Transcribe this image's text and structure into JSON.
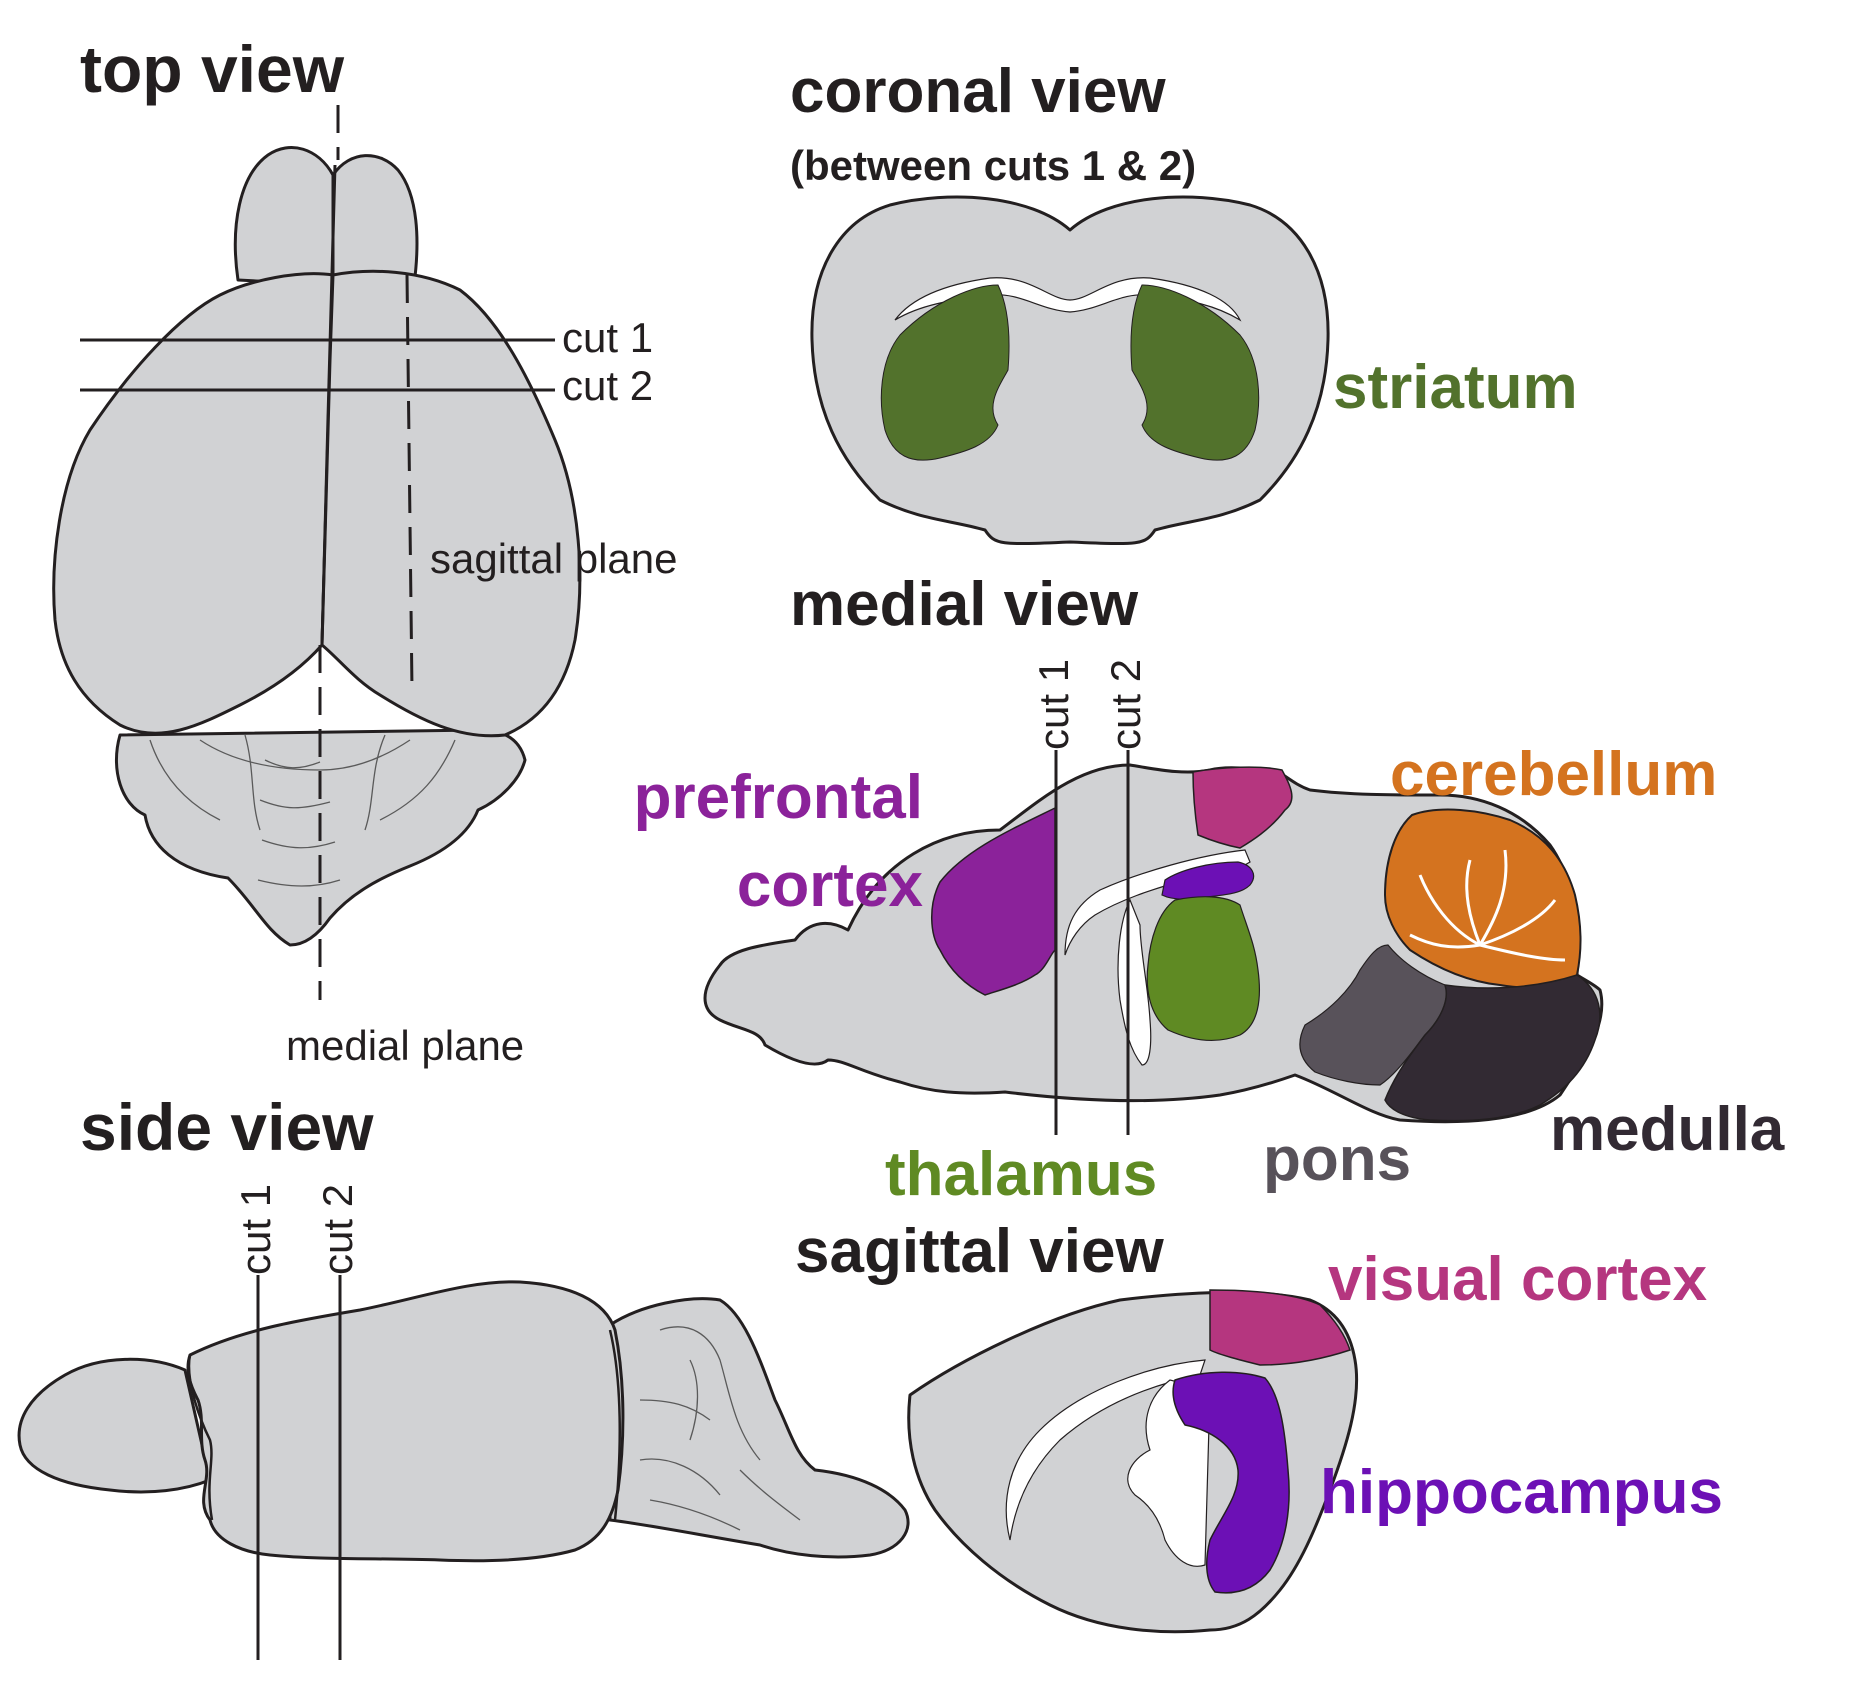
{
  "titles": {
    "top_view": "top view",
    "coronal_view": "coronal view",
    "coronal_sub": "(between cuts 1 & 2)",
    "medial_view": "medial view",
    "side_view": "side view",
    "sagittal_view": "sagittal view"
  },
  "labels": {
    "cut1": "cut 1",
    "cut2": "cut 2",
    "sagittal_plane": "sagittal plane",
    "medial_plane": "medial plane"
  },
  "regions": {
    "striatum": "striatum",
    "prefrontal_line1": "prefrontal",
    "prefrontal_line2": "cortex",
    "cerebellum": "cerebellum",
    "thalamus": "thalamus",
    "pons": "pons",
    "medulla": "medulla",
    "visual_cortex": "visual cortex",
    "hippocampus": "hippocampus"
  },
  "colors": {
    "brain": "#d1d2d4",
    "outline": "#231f20",
    "title": "#231f20",
    "striatum": "#52722c",
    "prefrontal": "#8b229a",
    "visual_cortex": "#b5367f",
    "hippocampus": "#6c10b5",
    "cerebellum": "#d4731f",
    "thalamus": "#5f8a23",
    "pons": "#58525a",
    "medulla": "#322a33"
  }
}
